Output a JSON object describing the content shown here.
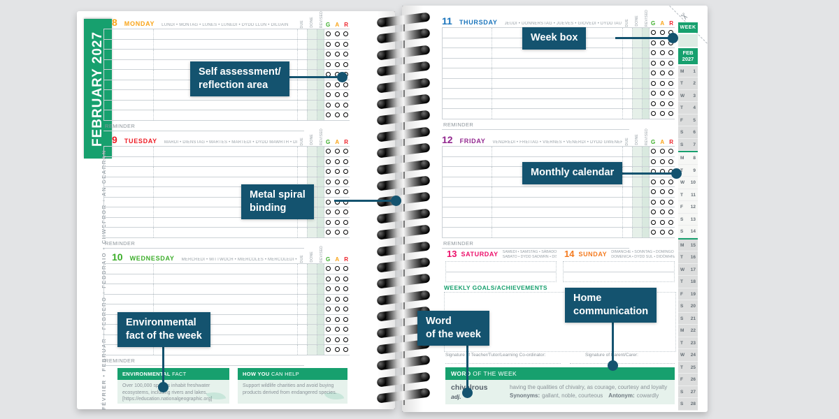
{
  "labels": {
    "reminder": "REMINDER",
    "due": "DUE",
    "done": "DONE",
    "revised": "REVISED",
    "g": "G",
    "a": "A",
    "r": "R"
  },
  "colors": {
    "brand_green": "#17a06e",
    "callout_navy": "#14536f",
    "g_green": "#3dae2b",
    "a_amber": "#f9a51a",
    "r_red": "#ed1c24"
  },
  "icons": {
    "scissors": "✂"
  },
  "left_page": {
    "month_tab": "FEBRUARY 2027",
    "month_languages": "FÉVRIER • FEBRUAR • FEBRERO • FEBBRAIO • CHWEFROR • AN GEARRAN",
    "days": [
      {
        "num": "8",
        "name": "MONDAY",
        "color": "#f9a51a",
        "languages": "LUNDI • MONTAG • LUNES • LUNEDÌ • DYDD LLUN • DILUAIN",
        "rows": 9
      },
      {
        "num": "9",
        "name": "TUESDAY",
        "color": "#ed1c24",
        "languages": "MARDI • DIENSTAG • MARTES • MARTEDÌ • DYDD MAWRTH • DIMÀIRT",
        "rows": 9
      },
      {
        "num": "10",
        "name": "WEDNESDAY",
        "color": "#3dae2b",
        "languages": "MERCREDI • MITTWOCH • MIÉRCOLES • MERCOLEDÌ • DYDD MERCHER • DICIADAIN",
        "rows": 9
      }
    ],
    "environmental_fact": {
      "title_bold": "ENVIRONMENTAL",
      "title_rest": " FACT",
      "body": "Over 100,000 species inhabit freshwater ecosystems, including rivers and lakes.",
      "source": "[https://education.nationalgeographic.org]"
    },
    "how_you_can_help": {
      "title_bold": "HOW YOU",
      "title_rest": " CAN HELP",
      "body": "Support wildlife charities and avoid buying products derived from endangered species."
    }
  },
  "right_page": {
    "days": [
      {
        "num": "11",
        "name": "THURSDAY",
        "color": "#1b75bc",
        "languages": "JEUDI • DONNERSTAG • JUEVES • GIOVEDÌ • DYDD IAU • DIARDAOIN",
        "rows": 9
      },
      {
        "num": "12",
        "name": "FRIDAY",
        "color": "#92278f",
        "languages": "VENDREDI • FREITAG • VIERNES • VENERDÌ • DYDD GWENER • DIHAOINE",
        "rows": 9
      }
    ],
    "weekend_days": [
      {
        "num": "13",
        "name": "SATURDAY",
        "color": "#ec0f6a",
        "languages_line1": "SAMEDI • SAMSTAG • SÁBADO •",
        "languages_line2": "SABATO • DYDD SADWRN • DISATHAIRNE"
      },
      {
        "num": "14",
        "name": "SUNDAY",
        "color": "#f47b20",
        "languages_line1": "DIMANCHE • SONNTAG • DOMINGO •",
        "languages_line2": "DOMENICA • DYDD SUL • DIDÒMHNAICH"
      }
    ],
    "weekly_goals_label": "WEEKLY GOALS/ACHIEVEMENTS",
    "signature_teacher": "Signature of Teacher/Tutor/Learning Co-ordinator:",
    "signature_parent": "Signature of Parent/Carer:",
    "word_of_the_week": {
      "title_bold": "WORD",
      "title_rest": " OF THE WEEK",
      "word": "chivalrous",
      "part_of_speech": "adj.",
      "definition": "having the qualities of chivalry, as courage, courtesy and loyalty",
      "synonyms_label": "Synonyms:",
      "synonyms": "gallant, noble, courteous",
      "antonym_label": "Antonym:",
      "antonym": "cowardly"
    },
    "mini_calendar": {
      "week_label": "WEEK",
      "month": "FEB",
      "year": "2027",
      "current_week_first": 8,
      "current_week_last": 14,
      "entries": [
        {
          "d": "M",
          "n": "1"
        },
        {
          "d": "T",
          "n": "2"
        },
        {
          "d": "W",
          "n": "3"
        },
        {
          "d": "T",
          "n": "4"
        },
        {
          "d": "F",
          "n": "5"
        },
        {
          "d": "S",
          "n": "6"
        },
        {
          "d": "S",
          "n": "7"
        },
        {
          "d": "M",
          "n": "8"
        },
        {
          "d": "T",
          "n": "9"
        },
        {
          "d": "W",
          "n": "10"
        },
        {
          "d": "T",
          "n": "11"
        },
        {
          "d": "F",
          "n": "12"
        },
        {
          "d": "S",
          "n": "13"
        },
        {
          "d": "S",
          "n": "14"
        },
        {
          "d": "M",
          "n": "15"
        },
        {
          "d": "T",
          "n": "16"
        },
        {
          "d": "W",
          "n": "17"
        },
        {
          "d": "T",
          "n": "18"
        },
        {
          "d": "F",
          "n": "19"
        },
        {
          "d": "S",
          "n": "20"
        },
        {
          "d": "S",
          "n": "21"
        },
        {
          "d": "M",
          "n": "22"
        },
        {
          "d": "T",
          "n": "23"
        },
        {
          "d": "W",
          "n": "24"
        },
        {
          "d": "T",
          "n": "25"
        },
        {
          "d": "F",
          "n": "26"
        },
        {
          "d": "S",
          "n": "27"
        },
        {
          "d": "S",
          "n": "28"
        }
      ]
    }
  },
  "callouts": [
    {
      "name": "callout-self-assessment",
      "text": "Self assessment/\nreflection area"
    },
    {
      "name": "callout-metal-spiral-binding",
      "text": "Metal spiral\nbinding"
    },
    {
      "name": "callout-week-box",
      "text": "Week box"
    },
    {
      "name": "callout-monthly-calendar",
      "text": "Monthly calendar"
    },
    {
      "name": "callout-environmental-fact",
      "text": "Environmental\nfact of the week"
    },
    {
      "name": "callout-word-of-the-week",
      "text": "Word\nof the week"
    },
    {
      "name": "callout-home-communication",
      "text": "Home\ncommunication"
    }
  ]
}
